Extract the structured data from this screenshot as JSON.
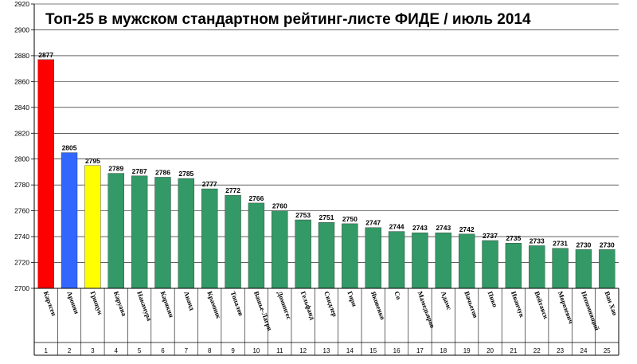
{
  "chart_data": {
    "type": "bar",
    "title": "Топ-25 в мужском стандартном рейтинг-листе ФИДЕ / июль 2014",
    "xlabel": "",
    "ylabel": "",
    "ylim": [
      2700,
      2920
    ],
    "y_ticks": [
      2700,
      2720,
      2740,
      2760,
      2780,
      2800,
      2820,
      2840,
      2860,
      2880,
      2900,
      2920
    ],
    "grid": true,
    "legend": "none",
    "categories": [
      "Карлсен",
      "Аронян",
      "Грищук",
      "Каруана",
      "Накамура",
      "Карякин",
      "Ананд",
      "Крамник",
      "Топалов",
      "Вашье-Лагрв",
      "Домингес",
      "Гельфанд",
      "Свидлер",
      "Гири",
      "Яковенко",
      "Со",
      "Мамедьяров",
      "Адамс",
      "Вачьегов",
      "Пико",
      "Иванчук",
      "Вейтавск",
      "Морозевич",
      "Непомнящий",
      "Ван Хао"
    ],
    "ranks": [
      "1",
      "2",
      "3",
      "4",
      "5",
      "6",
      "7",
      "8",
      "9",
      "10",
      "11",
      "12",
      "13",
      "14",
      "15",
      "16",
      "17",
      "18",
      "19",
      "20",
      "21",
      "22",
      "23",
      "24",
      "25"
    ],
    "values": [
      2877,
      2805,
      2795,
      2789,
      2787,
      2786,
      2785,
      2777,
      2772,
      2766,
      2760,
      2753,
      2751,
      2750,
      2747,
      2744,
      2743,
      2743,
      2742,
      2737,
      2735,
      2733,
      2731,
      2730,
      2730
    ],
    "colors": [
      "#ff0000",
      "#3366ff",
      "#ffff00",
      "#339966",
      "#339966",
      "#339966",
      "#339966",
      "#339966",
      "#339966",
      "#339966",
      "#339966",
      "#339966",
      "#339966",
      "#339966",
      "#339966",
      "#339966",
      "#339966",
      "#339966",
      "#339966",
      "#339966",
      "#339966",
      "#339966",
      "#339966",
      "#339966",
      "#339966"
    ]
  }
}
